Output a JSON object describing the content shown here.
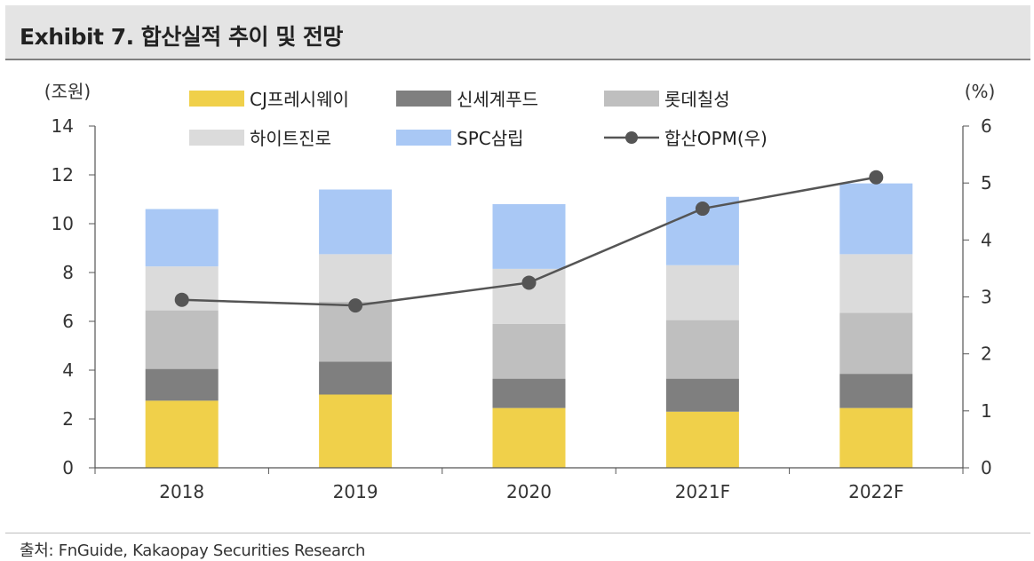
{
  "header": {
    "title": "Exhibit 7. 합산실적 추이 및 전망"
  },
  "footer": {
    "source": "출처: FnGuide, Kakaopay Securities Research"
  },
  "chart_data": {
    "type": "bar",
    "stacked": true,
    "title": "Exhibit 7. 합산실적 추이 및 전망",
    "ylabel": "(조원)",
    "y2label": "(%)",
    "ylim": [
      0,
      14
    ],
    "y2lim": [
      0,
      6
    ],
    "yticks": [
      "0",
      "2",
      "4",
      "6",
      "8",
      "10",
      "12",
      "14"
    ],
    "y2ticks": [
      "0",
      "1",
      "2",
      "3",
      "4",
      "5",
      "6"
    ],
    "categories": [
      "2018",
      "2019",
      "2020",
      "2021F",
      "2022F"
    ],
    "series": [
      {
        "name": "CJ프레시웨이",
        "color": "#f0d04a",
        "values": [
          2.75,
          3.0,
          2.45,
          2.3,
          2.45
        ]
      },
      {
        "name": "신세계푸드",
        "color": "#7f7f7f",
        "values": [
          1.3,
          1.35,
          1.2,
          1.35,
          1.4
        ]
      },
      {
        "name": "롯데칠성",
        "color": "#bfbfbf",
        "values": [
          2.4,
          2.45,
          2.25,
          2.4,
          2.5
        ]
      },
      {
        "name": "하이트진로",
        "color": "#dbdbdb",
        "values": [
          1.8,
          1.95,
          2.25,
          2.25,
          2.4
        ]
      },
      {
        "name": "SPC삼립",
        "color": "#a9c8f5",
        "values": [
          2.35,
          2.65,
          2.65,
          2.8,
          2.9
        ]
      }
    ],
    "line": {
      "name": "합산OPM(우)",
      "color": "#555555",
      "axis": "right",
      "values": [
        2.95,
        2.85,
        3.25,
        4.55,
        5.1
      ]
    },
    "legend_position": "top"
  }
}
